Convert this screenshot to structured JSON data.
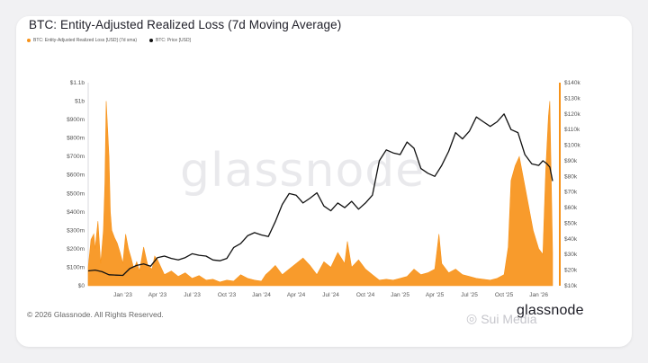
{
  "title": "BTC: Entity-Adjusted Realized Loss (7d Moving Average)",
  "footer": "© 2026 Glassnode. All Rights Reserved.",
  "brand": "glassnode",
  "watermark": "glassnode",
  "overlay_watermark": "Sui Media",
  "colors": {
    "loss": "#f7931a",
    "price": "#111111",
    "axis_right_bar": "#f7931a"
  },
  "chart_data": {
    "type": "area",
    "title": "BTC: Entity-Adjusted Realized Loss (7d Moving Average)",
    "legend": [
      "BTC: Entity-Adjusted Realized Loss [USD] (7d sma)",
      "BTC: Price [USD]"
    ],
    "left_axis": {
      "min": 0,
      "max": 1100000000,
      "ticks": [
        "$0",
        "$100m",
        "$200m",
        "$300m",
        "$400m",
        "$500m",
        "$600m",
        "$700m",
        "$800m",
        "$900m",
        "$1b",
        "$1.1b"
      ]
    },
    "right_axis": {
      "min": 10000,
      "max": 140000,
      "ticks": [
        "$10k",
        "$20k",
        "$30k",
        "$40k",
        "$50k",
        "$60k",
        "$70k",
        "$80k",
        "$90k",
        "$100k",
        "$110k",
        "$120k",
        "$130k",
        "$140k"
      ]
    },
    "x_ticks": [
      "Jan '23",
      "Apr '23",
      "Jul '23",
      "Oct '23",
      "Jan '24",
      "Apr '24",
      "Jul '24",
      "Oct '24",
      "Jan '25",
      "Apr '25",
      "Jul '25",
      "Oct '25",
      "Jan '26"
    ],
    "x_domain": [
      2022.75,
      2026.1
    ],
    "x_tick_values": [
      2023.0,
      2023.25,
      2023.5,
      2023.75,
      2024.0,
      2024.25,
      2024.5,
      2024.75,
      2025.0,
      2025.25,
      2025.5,
      2025.75,
      2026.0
    ],
    "series": [
      {
        "name": "BTC: Entity-Adjusted Realized Loss [USD] (7d sma)",
        "axis": "left",
        "x": [
          2022.75,
          2022.77,
          2022.79,
          2022.8,
          2022.82,
          2022.84,
          2022.86,
          2022.87,
          2022.88,
          2022.89,
          2022.9,
          2022.91,
          2022.92,
          2022.94,
          2022.96,
          2022.98,
          2023.0,
          2023.02,
          2023.04,
          2023.06,
          2023.08,
          2023.1,
          2023.12,
          2023.15,
          2023.18,
          2023.21,
          2023.23,
          2023.25,
          2023.3,
          2023.35,
          2023.4,
          2023.45,
          2023.5,
          2023.55,
          2023.6,
          2023.65,
          2023.7,
          2023.75,
          2023.8,
          2023.85,
          2023.9,
          2023.95,
          2024.0,
          2024.03,
          2024.06,
          2024.1,
          2024.15,
          2024.2,
          2024.25,
          2024.3,
          2024.35,
          2024.4,
          2024.45,
          2024.5,
          2024.55,
          2024.6,
          2024.62,
          2024.65,
          2024.7,
          2024.75,
          2024.8,
          2024.85,
          2024.9,
          2024.95,
          2025.0,
          2025.05,
          2025.1,
          2025.15,
          2025.2,
          2025.25,
          2025.28,
          2025.3,
          2025.35,
          2025.4,
          2025.45,
          2025.5,
          2025.55,
          2025.6,
          2025.65,
          2025.7,
          2025.75,
          2025.78,
          2025.8,
          2025.83,
          2025.86,
          2025.9,
          2025.93,
          2025.96,
          2026.0,
          2026.03,
          2026.05,
          2026.07,
          2026.08,
          2026.1
        ],
        "values": [
          100,
          250,
          280,
          200,
          350,
          120,
          300,
          550,
          1000,
          850,
          700,
          400,
          300,
          260,
          230,
          180,
          120,
          280,
          200,
          150,
          90,
          130,
          80,
          210,
          110,
          90,
          160,
          140,
          60,
          80,
          50,
          70,
          40,
          55,
          30,
          35,
          20,
          30,
          25,
          60,
          40,
          30,
          25,
          60,
          80,
          110,
          60,
          90,
          120,
          150,
          110,
          60,
          130,
          100,
          180,
          120,
          240,
          100,
          140,
          90,
          60,
          30,
          35,
          30,
          40,
          50,
          90,
          60,
          70,
          90,
          280,
          120,
          70,
          90,
          60,
          50,
          40,
          35,
          30,
          40,
          60,
          210,
          570,
          650,
          700,
          540,
          420,
          300,
          200,
          170,
          620,
          920,
          1000,
          180
        ],
        "unit": "millions USD"
      },
      {
        "name": "BTC: Price [USD]",
        "axis": "right",
        "x": [
          2022.75,
          2022.8,
          2022.85,
          2022.9,
          2022.95,
          2023.0,
          2023.05,
          2023.1,
          2023.15,
          2023.2,
          2023.25,
          2023.3,
          2023.35,
          2023.4,
          2023.45,
          2023.5,
          2023.55,
          2023.6,
          2023.65,
          2023.7,
          2023.75,
          2023.8,
          2023.85,
          2023.9,
          2023.95,
          2024.0,
          2024.05,
          2024.1,
          2024.15,
          2024.2,
          2024.25,
          2024.3,
          2024.35,
          2024.4,
          2024.45,
          2024.5,
          2024.55,
          2024.6,
          2024.65,
          2024.7,
          2024.75,
          2024.8,
          2024.85,
          2024.9,
          2024.95,
          2025.0,
          2025.05,
          2025.1,
          2025.15,
          2025.2,
          2025.25,
          2025.3,
          2025.35,
          2025.4,
          2025.45,
          2025.5,
          2025.55,
          2025.6,
          2025.65,
          2025.7,
          2025.75,
          2025.8,
          2025.85,
          2025.9,
          2025.95,
          2026.0,
          2026.03,
          2026.06,
          2026.08,
          2026.1
        ],
        "values": [
          19500,
          20000,
          19000,
          17000,
          16800,
          16600,
          21000,
          23000,
          24000,
          22500,
          28000,
          29000,
          27500,
          26500,
          28000,
          30500,
          29500,
          29000,
          26500,
          26000,
          27500,
          34500,
          37000,
          42000,
          44000,
          42500,
          41500,
          51000,
          62000,
          69000,
          68000,
          63000,
          66000,
          69500,
          61000,
          58000,
          63000,
          60000,
          64000,
          59000,
          63000,
          68000,
          90000,
          97000,
          95000,
          94000,
          102000,
          98000,
          85000,
          82000,
          80000,
          87000,
          96000,
          108000,
          104000,
          109000,
          118000,
          115000,
          112000,
          115000,
          120000,
          110000,
          108000,
          94000,
          88000,
          87000,
          90000,
          88000,
          86000,
          77000
        ],
        "unit": "USD"
      }
    ]
  }
}
